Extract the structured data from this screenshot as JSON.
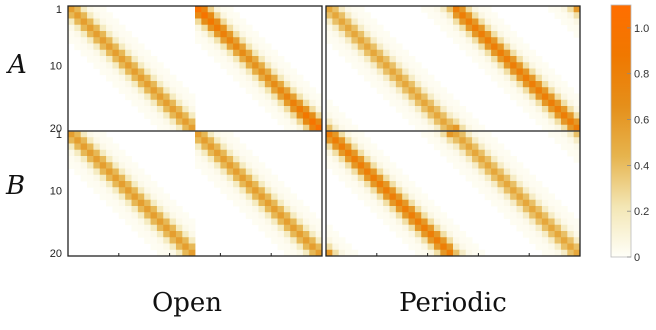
{
  "chart_data": {
    "type": "heatmap",
    "row_labels": [
      "A",
      "B"
    ],
    "column_titles": [
      "Open",
      "Periodic"
    ],
    "block_tick_labels": [
      "1",
      "10",
      "20"
    ],
    "colorbar": {
      "range": [
        0,
        1.1
      ],
      "ticks": [
        "0",
        "0.2",
        "0.4",
        "0.6",
        "0.8",
        "1.0"
      ],
      "colors": [
        "#fffff8",
        "#f3e6b4",
        "#e6b44e",
        "#e58f1a",
        "#f07800",
        "#ff6e00"
      ]
    },
    "panels": [
      {
        "name": "Open",
        "size": 40,
        "boundary": "open",
        "blocks": {
          "diag_center": 0.55,
          "diag_edge": 0.55,
          "offdiag_center": 0.62,
          "offdiag_edge": 1.0,
          "half_width": 5
        }
      },
      {
        "name": "Periodic",
        "size": 40,
        "boundary": "periodic",
        "blocks": {
          "diag_center": 0.5,
          "diag_edge": 0.5,
          "offdiag_center": 0.8,
          "offdiag_edge": 0.8,
          "half_width": 5
        }
      }
    ]
  }
}
